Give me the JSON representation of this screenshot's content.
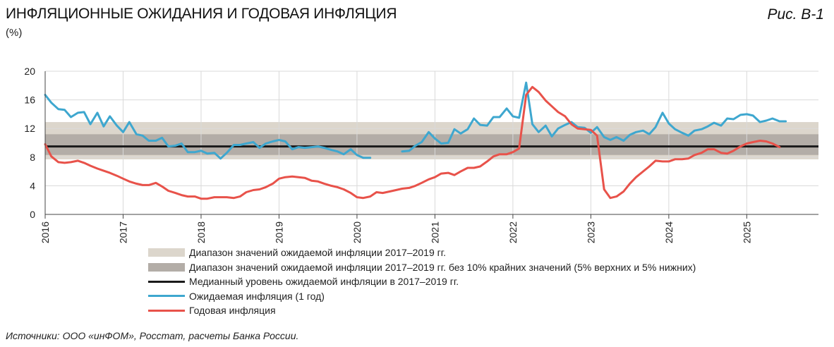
{
  "header": {
    "title": "ИНФЛЯЦИОННЫЕ ОЖИДАНИЯ И ГОДОВАЯ ИНФЛЯЦИЯ",
    "unit": "(%)",
    "figure_number": "Рис. В-1"
  },
  "source": "Источники: ООО «инФОМ», Росстат, расчеты Банка России.",
  "colors": {
    "outer_band": "#dcd6cc",
    "inner_band": "#b3ada7",
    "median": "#1a1a1a",
    "expectations": "#3ea7cf",
    "inflation": "#e8524a",
    "grid": "#d9d9d9"
  },
  "legend": [
    {
      "key": "outer_band",
      "label": "Диапазон значений ожидаемой инфляции 2017–2019 гг."
    },
    {
      "key": "inner_band",
      "label": "Диапазон значений ожидаемой инфляции 2017–2019 гг. без 10% крайних значений (5% верхних и 5% нижних)"
    },
    {
      "key": "median",
      "label": "Медианный уровень ожидаемой инфляции в 2017–2019 гг."
    },
    {
      "key": "expectations",
      "label": "Ожидаемая инфляция (1 год)"
    },
    {
      "key": "inflation",
      "label": "Годовая инфляция"
    }
  ],
  "chart_data": {
    "type": "line",
    "title": "ИНФЛЯЦИОННЫЕ ОЖИДАНИЯ И ГОДОВАЯ ИНФЛЯЦИЯ",
    "ylabel": "(%)",
    "ylim": [
      0,
      20
    ],
    "yticks": [
      0,
      4,
      8,
      12,
      16,
      20
    ],
    "xlim": [
      2016,
      2025.92
    ],
    "xticks": [
      "2016",
      "2017",
      "2018",
      "2019",
      "2020",
      "2021",
      "2022",
      "2023",
      "2024",
      "2025"
    ],
    "grid": true,
    "legend_placement": "bottom",
    "bands": [
      {
        "name": "Диапазон значений ожидаемой инфляции 2017–2019 гг.",
        "low": 7.7,
        "high": 12.9
      },
      {
        "name": "Диапазон значений ожидаемой инфляции 2017–2019 гг. без 10% крайних значений (5% верхних и 5% нижних)",
        "low": 8.3,
        "high": 11.2
      }
    ],
    "hlines": [
      {
        "name": "Медианный уровень ожидаемой инфляции в 2017–2019 гг.",
        "y": 9.5
      }
    ],
    "series": [
      {
        "name": "Ожидаемая инфляция (1 год)",
        "points": [
          [
            2016.0,
            16.7
          ],
          [
            2016.08,
            15.6
          ],
          [
            2016.17,
            14.7
          ],
          [
            2016.25,
            14.6
          ],
          [
            2016.33,
            13.6
          ],
          [
            2016.42,
            14.2
          ],
          [
            2016.5,
            14.3
          ],
          [
            2016.58,
            12.6
          ],
          [
            2016.67,
            14.2
          ],
          [
            2016.75,
            12.3
          ],
          [
            2016.83,
            13.7
          ],
          [
            2016.92,
            12.4
          ],
          [
            2017.0,
            11.5
          ],
          [
            2017.08,
            12.9
          ],
          [
            2017.17,
            11.2
          ],
          [
            2017.25,
            11.0
          ],
          [
            2017.33,
            10.3
          ],
          [
            2017.42,
            10.3
          ],
          [
            2017.5,
            10.7
          ],
          [
            2017.58,
            9.5
          ],
          [
            2017.67,
            9.6
          ],
          [
            2017.75,
            9.9
          ],
          [
            2017.83,
            8.7
          ],
          [
            2017.92,
            8.7
          ],
          [
            2018.0,
            8.9
          ],
          [
            2018.08,
            8.5
          ],
          [
            2018.17,
            8.6
          ],
          [
            2018.25,
            7.8
          ],
          [
            2018.33,
            8.6
          ],
          [
            2018.42,
            9.7
          ],
          [
            2018.5,
            9.7
          ],
          [
            2018.58,
            9.9
          ],
          [
            2018.67,
            10.1
          ],
          [
            2018.75,
            9.3
          ],
          [
            2018.83,
            9.9
          ],
          [
            2018.92,
            10.2
          ],
          [
            2019.0,
            10.4
          ],
          [
            2019.08,
            10.2
          ],
          [
            2019.17,
            9.1
          ],
          [
            2019.25,
            9.4
          ],
          [
            2019.33,
            9.3
          ],
          [
            2019.42,
            9.4
          ],
          [
            2019.5,
            9.5
          ],
          [
            2019.58,
            9.3
          ],
          [
            2019.67,
            9.0
          ],
          [
            2019.75,
            8.8
          ],
          [
            2019.83,
            8.4
          ],
          [
            2019.92,
            9.1
          ],
          [
            2020.0,
            8.3
          ],
          [
            2020.08,
            7.9
          ],
          [
            2020.17,
            7.9
          ],
          null,
          [
            2020.58,
            8.8
          ],
          [
            2020.67,
            8.9
          ],
          [
            2020.75,
            9.6
          ],
          [
            2020.83,
            10.1
          ],
          [
            2020.92,
            11.5
          ],
          [
            2021.0,
            10.6
          ],
          [
            2021.08,
            9.9
          ],
          [
            2021.17,
            10.0
          ],
          [
            2021.25,
            11.9
          ],
          [
            2021.33,
            11.3
          ],
          [
            2021.42,
            11.9
          ],
          [
            2021.5,
            13.4
          ],
          [
            2021.58,
            12.5
          ],
          [
            2021.67,
            12.4
          ],
          [
            2021.75,
            13.6
          ],
          [
            2021.83,
            13.6
          ],
          [
            2021.92,
            14.8
          ],
          [
            2022.0,
            13.7
          ],
          [
            2022.08,
            13.5
          ],
          [
            2022.17,
            18.4
          ],
          [
            2022.25,
            12.6
          ],
          [
            2022.33,
            11.5
          ],
          [
            2022.42,
            12.4
          ],
          [
            2022.5,
            10.9
          ],
          [
            2022.58,
            12.0
          ],
          [
            2022.67,
            12.5
          ],
          [
            2022.75,
            12.9
          ],
          [
            2022.83,
            12.2
          ],
          [
            2022.92,
            12.1
          ],
          [
            2023.0,
            11.4
          ],
          [
            2023.08,
            12.2
          ],
          [
            2023.17,
            10.8
          ],
          [
            2023.25,
            10.4
          ],
          [
            2023.33,
            10.8
          ],
          [
            2023.42,
            10.3
          ],
          [
            2023.5,
            11.1
          ],
          [
            2023.58,
            11.5
          ],
          [
            2023.67,
            11.7
          ],
          [
            2023.75,
            11.2
          ],
          [
            2023.83,
            12.2
          ],
          [
            2023.92,
            14.2
          ],
          [
            2024.0,
            12.7
          ],
          [
            2024.08,
            11.9
          ],
          [
            2024.17,
            11.4
          ],
          [
            2024.25,
            11.0
          ],
          [
            2024.33,
            11.7
          ],
          [
            2024.42,
            11.9
          ],
          [
            2024.5,
            12.3
          ],
          [
            2024.58,
            12.8
          ],
          [
            2024.67,
            12.4
          ],
          [
            2024.75,
            13.4
          ],
          [
            2024.83,
            13.3
          ],
          [
            2024.92,
            13.9
          ],
          [
            2025.0,
            14.0
          ],
          [
            2025.08,
            13.8
          ],
          [
            2025.17,
            12.9
          ],
          [
            2025.25,
            13.1
          ],
          [
            2025.33,
            13.4
          ],
          [
            2025.42,
            13.0
          ],
          [
            2025.5,
            13.0
          ]
        ]
      },
      {
        "name": "Годовая инфляция",
        "points": [
          [
            2016.0,
            9.8
          ],
          [
            2016.08,
            8.1
          ],
          [
            2016.17,
            7.3
          ],
          [
            2016.25,
            7.2
          ],
          [
            2016.33,
            7.3
          ],
          [
            2016.42,
            7.5
          ],
          [
            2016.5,
            7.2
          ],
          [
            2016.58,
            6.8
          ],
          [
            2016.67,
            6.4
          ],
          [
            2016.75,
            6.1
          ],
          [
            2016.83,
            5.8
          ],
          [
            2016.92,
            5.4
          ],
          [
            2017.0,
            5.0
          ],
          [
            2017.08,
            4.6
          ],
          [
            2017.17,
            4.3
          ],
          [
            2017.25,
            4.1
          ],
          [
            2017.33,
            4.1
          ],
          [
            2017.42,
            4.4
          ],
          [
            2017.5,
            3.9
          ],
          [
            2017.58,
            3.3
          ],
          [
            2017.67,
            3.0
          ],
          [
            2017.75,
            2.7
          ],
          [
            2017.83,
            2.5
          ],
          [
            2017.92,
            2.5
          ],
          [
            2018.0,
            2.2
          ],
          [
            2018.08,
            2.2
          ],
          [
            2018.17,
            2.4
          ],
          [
            2018.25,
            2.4
          ],
          [
            2018.33,
            2.4
          ],
          [
            2018.42,
            2.3
          ],
          [
            2018.5,
            2.5
          ],
          [
            2018.58,
            3.1
          ],
          [
            2018.67,
            3.4
          ],
          [
            2018.75,
            3.5
          ],
          [
            2018.83,
            3.8
          ],
          [
            2018.92,
            4.3
          ],
          [
            2019.0,
            5.0
          ],
          [
            2019.08,
            5.2
          ],
          [
            2019.17,
            5.3
          ],
          [
            2019.25,
            5.2
          ],
          [
            2019.33,
            5.1
          ],
          [
            2019.42,
            4.7
          ],
          [
            2019.5,
            4.6
          ],
          [
            2019.58,
            4.3
          ],
          [
            2019.67,
            4.0
          ],
          [
            2019.75,
            3.8
          ],
          [
            2019.83,
            3.5
          ],
          [
            2019.92,
            3.0
          ],
          [
            2020.0,
            2.4
          ],
          [
            2020.08,
            2.3
          ],
          [
            2020.17,
            2.5
          ],
          [
            2020.25,
            3.1
          ],
          [
            2020.33,
            3.0
          ],
          [
            2020.42,
            3.2
          ],
          [
            2020.5,
            3.4
          ],
          [
            2020.58,
            3.6
          ],
          [
            2020.67,
            3.7
          ],
          [
            2020.75,
            4.0
          ],
          [
            2020.83,
            4.4
          ],
          [
            2020.92,
            4.9
          ],
          [
            2021.0,
            5.2
          ],
          [
            2021.08,
            5.7
          ],
          [
            2021.17,
            5.8
          ],
          [
            2021.25,
            5.5
          ],
          [
            2021.33,
            6.0
          ],
          [
            2021.42,
            6.5
          ],
          [
            2021.5,
            6.5
          ],
          [
            2021.58,
            6.7
          ],
          [
            2021.67,
            7.4
          ],
          [
            2021.75,
            8.1
          ],
          [
            2021.83,
            8.4
          ],
          [
            2021.92,
            8.4
          ],
          [
            2022.0,
            8.7
          ],
          [
            2022.08,
            9.2
          ],
          [
            2022.17,
            16.7
          ],
          [
            2022.25,
            17.8
          ],
          [
            2022.33,
            17.1
          ],
          [
            2022.42,
            15.9
          ],
          [
            2022.5,
            15.1
          ],
          [
            2022.58,
            14.3
          ],
          [
            2022.67,
            13.7
          ],
          [
            2022.75,
            12.6
          ],
          [
            2022.83,
            12.0
          ],
          [
            2022.92,
            11.9
          ],
          [
            2023.0,
            11.8
          ],
          [
            2023.08,
            11.0
          ],
          [
            2023.17,
            3.5
          ],
          [
            2023.25,
            2.3
          ],
          [
            2023.33,
            2.5
          ],
          [
            2023.42,
            3.2
          ],
          [
            2023.5,
            4.3
          ],
          [
            2023.58,
            5.2
          ],
          [
            2023.67,
            6.0
          ],
          [
            2023.75,
            6.7
          ],
          [
            2023.83,
            7.5
          ],
          [
            2023.92,
            7.4
          ],
          [
            2024.0,
            7.4
          ],
          [
            2024.08,
            7.7
          ],
          [
            2024.17,
            7.7
          ],
          [
            2024.25,
            7.8
          ],
          [
            2024.33,
            8.3
          ],
          [
            2024.42,
            8.6
          ],
          [
            2024.5,
            9.1
          ],
          [
            2024.58,
            9.1
          ],
          [
            2024.67,
            8.6
          ],
          [
            2024.75,
            8.5
          ],
          [
            2024.83,
            8.9
          ],
          [
            2024.92,
            9.5
          ],
          [
            2025.0,
            9.9
          ],
          [
            2025.08,
            10.1
          ],
          [
            2025.17,
            10.3
          ],
          [
            2025.25,
            10.2
          ],
          [
            2025.33,
            9.9
          ],
          [
            2025.42,
            9.4
          ]
        ]
      }
    ]
  }
}
